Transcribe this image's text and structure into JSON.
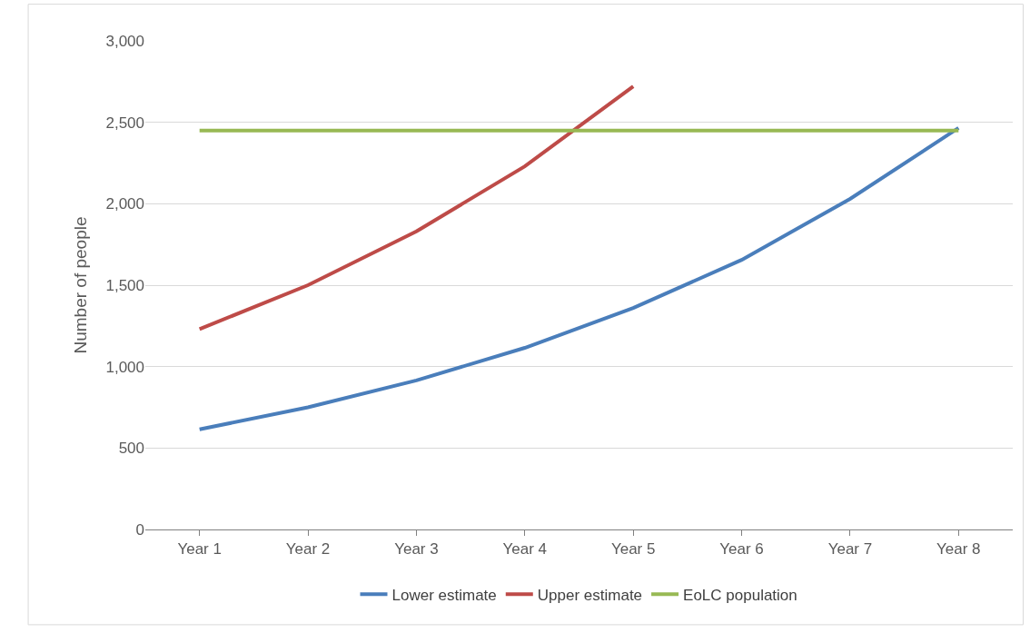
{
  "chart_data": {
    "type": "line",
    "ylabel": "Number of people",
    "categories": [
      "Year 1",
      "Year 2",
      "Year 3",
      "Year 4",
      "Year 5",
      "Year 6",
      "Year 7",
      "Year 8"
    ],
    "series": [
      {
        "name": "Lower estimate",
        "color": "#4a7ebb",
        "values": [
          615,
          750,
          915,
          1115,
          1360,
          1655,
          2030,
          2465
        ]
      },
      {
        "name": "Upper estimate",
        "color": "#be4b48",
        "values": [
          1230,
          1500,
          1830,
          2230,
          2720,
          null,
          null,
          null
        ]
      },
      {
        "name": "EoLC population",
        "color": "#98b954",
        "values": [
          2450,
          2450,
          2450,
          2450,
          2450,
          2450,
          2450,
          2450
        ]
      }
    ],
    "ylim": [
      0,
      3000
    ],
    "yticks": [
      {
        "value": 0,
        "label": "0"
      },
      {
        "value": 500,
        "label": "500"
      },
      {
        "value": 1000,
        "label": "1,000"
      },
      {
        "value": 1500,
        "label": "1,500"
      },
      {
        "value": 2000,
        "label": "2,000"
      },
      {
        "value": 2500,
        "label": "2,500"
      },
      {
        "value": 3000,
        "label": "3,000"
      }
    ],
    "grid": "y",
    "legend": "bottom",
    "marker": "none",
    "line_style": "solid"
  }
}
